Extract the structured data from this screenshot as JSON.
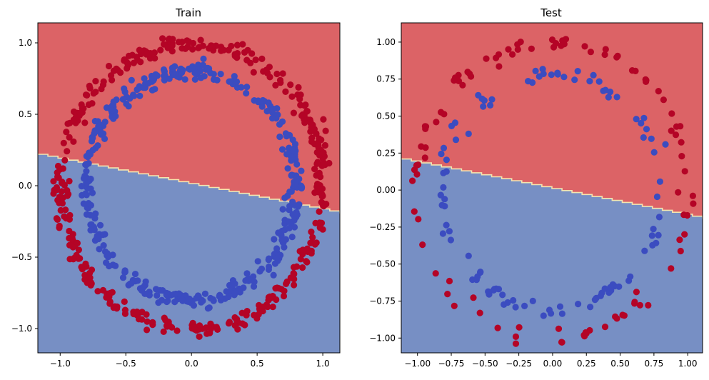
{
  "chart_data": [
    {
      "type": "scatter",
      "title": "Train",
      "xlim": [
        -1.17,
        1.13
      ],
      "ylim": [
        -1.17,
        1.14
      ],
      "xticks": [
        -1.0,
        -0.5,
        0.0,
        0.5,
        1.0
      ],
      "xtick_labels": [
        "−1.0",
        "−0.5",
        "0.0",
        "0.5",
        "1.0"
      ],
      "yticks": [
        -1.0,
        -0.5,
        0.0,
        0.5,
        1.0
      ],
      "ytick_labels": [
        "−1.0",
        "−0.5",
        "0.0",
        "0.5",
        "1.0"
      ],
      "decision_boundary": {
        "x": [
          -1.17,
          1.13
        ],
        "y": [
          0.22,
          -0.19
        ],
        "above_class": "red",
        "below_class": "blue"
      },
      "series": [
        {
          "class": "red",
          "color": "#b40426",
          "count": 400,
          "radius_approx": 1.0,
          "radius_noise_approx": 0.03
        },
        {
          "class": "blue",
          "color": "#3b4cc0",
          "count": 400,
          "radius_approx": 0.8,
          "radius_noise_approx": 0.03
        }
      ],
      "grid": false
    },
    {
      "type": "scatter",
      "title": "Test",
      "xlim": [
        -1.12,
        1.11
      ],
      "ylim": [
        -1.1,
        1.13
      ],
      "xticks": [
        -1.0,
        -0.75,
        -0.5,
        -0.25,
        0.0,
        0.25,
        0.5,
        0.75,
        1.0
      ],
      "xtick_labels": [
        "−1.00",
        "−0.75",
        "−0.50",
        "−0.25",
        "0.00",
        "0.25",
        "0.50",
        "0.75",
        "1.00"
      ],
      "yticks": [
        -1.0,
        -0.75,
        -0.5,
        -0.25,
        0.0,
        0.25,
        0.5,
        0.75,
        1.0
      ],
      "ytick_labels": [
        "−1.00",
        "−0.75",
        "−0.50",
        "−0.25",
        "0.00",
        "0.25",
        "0.50",
        "0.75",
        "1.00"
      ],
      "decision_boundary": {
        "x": [
          -1.12,
          1.11
        ],
        "y": [
          0.21,
          -0.19
        ],
        "above_class": "red",
        "below_class": "blue"
      },
      "series": [
        {
          "class": "red",
          "color": "#b40426",
          "count": 100,
          "radius_approx": 1.0,
          "radius_noise_approx": 0.03
        },
        {
          "class": "blue",
          "color": "#3b4cc0",
          "count": 100,
          "radius_approx": 0.8,
          "radius_noise_approx": 0.03
        }
      ],
      "grid": false
    }
  ],
  "region_colors": {
    "red": "#dc6366",
    "blue": "#778fc4",
    "boundary": "#f5e6b0"
  }
}
